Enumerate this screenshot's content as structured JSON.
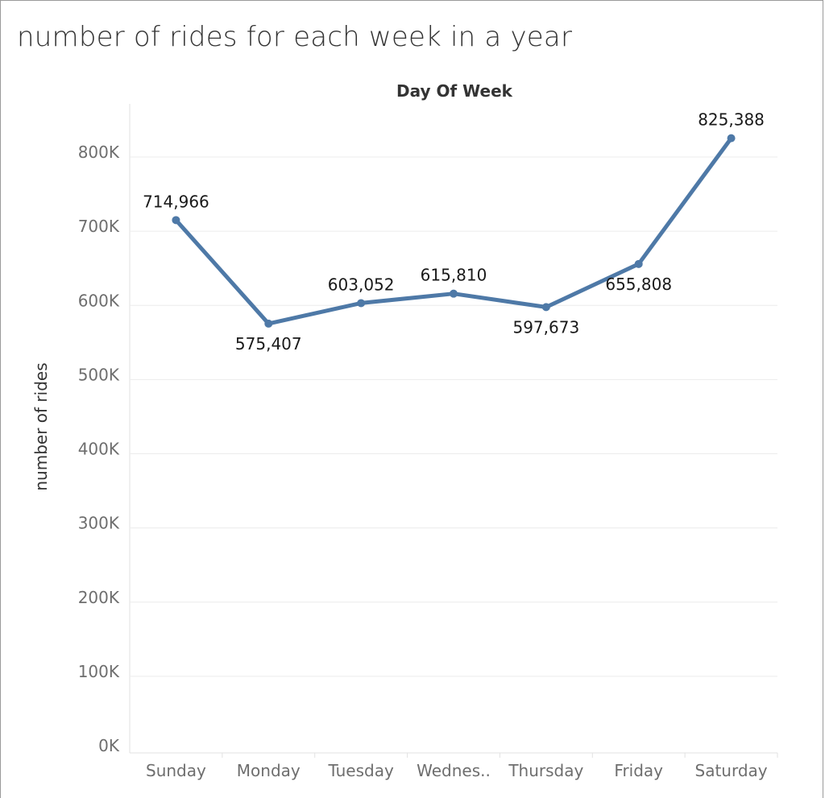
{
  "chart_data": {
    "type": "line",
    "title": "number of rides for each week in a year",
    "header": "Day Of Week",
    "ylabel": "number of rides",
    "xlabel": "",
    "categories": [
      "Sunday",
      "Monday",
      "Tuesday",
      "Wednes..",
      "Thursday",
      "Friday",
      "Saturday"
    ],
    "values": [
      714966,
      575407,
      603052,
      615810,
      597673,
      655808,
      825388
    ],
    "data_labels": [
      "714,966",
      "575,407",
      "603,052",
      "615,810",
      "597,673",
      "655,808",
      "825,388"
    ],
    "label_positions": [
      "above",
      "below",
      "above",
      "above",
      "below",
      "below",
      "above"
    ],
    "yticks": [
      0,
      100000,
      200000,
      300000,
      400000,
      500000,
      600000,
      700000,
      800000
    ],
    "ytick_labels": [
      "0K",
      "100K",
      "200K",
      "300K",
      "400K",
      "500K",
      "600K",
      "700K",
      "800K"
    ],
    "ylim": [
      0,
      850000
    ],
    "grid": true,
    "line_color": "#4e79a7",
    "gridline_color": "#ececec"
  }
}
